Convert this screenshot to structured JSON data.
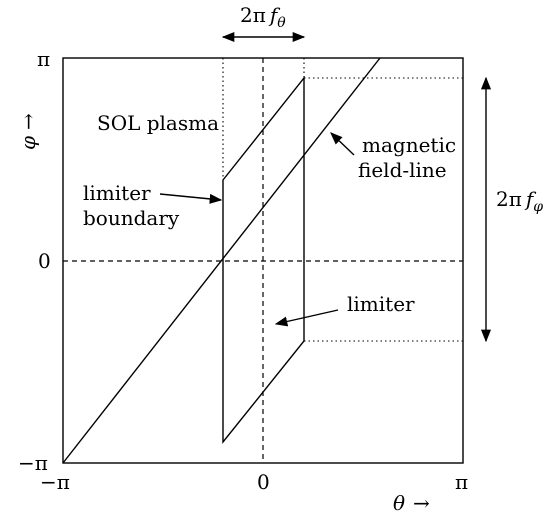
{
  "top_dimension": {
    "base": "2π",
    "italic": "f",
    "sub": "θ"
  },
  "right_dimension": {
    "base": "2π",
    "italic": "f",
    "sub": "φ"
  },
  "y_axis": {
    "symbol": "φ",
    "arrow": "→"
  },
  "x_axis": {
    "symbol": "θ",
    "arrow": "→"
  },
  "ticks": {
    "y_top": "π",
    "y_mid": "0",
    "y_bottom": "−π",
    "x_left": "−π",
    "x_mid": "0",
    "x_right": "π"
  },
  "labels": {
    "sol_plasma": "SOL plasma",
    "magnetic_line1": "magnetic",
    "magnetic_line2": "field-line",
    "limiter_boundary_line1": "limiter",
    "limiter_boundary_line2": "boundary",
    "limiter": "limiter"
  }
}
